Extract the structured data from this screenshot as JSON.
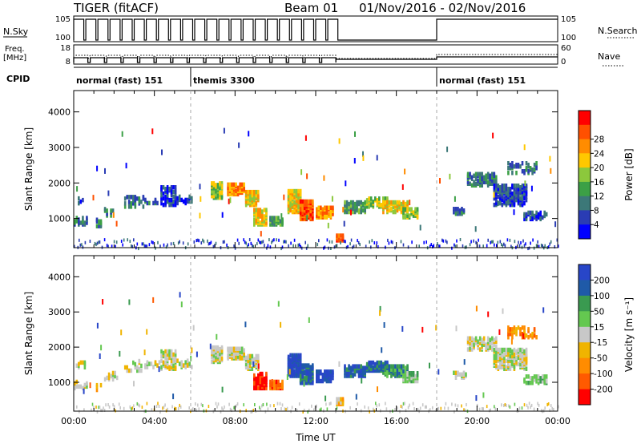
{
  "header": {
    "radar": "TIGER (fitACF)",
    "beam": "Beam 01",
    "daterange": "01/Nov/2016 - 02/Nov/2016"
  },
  "top_panels": {
    "nsky_label": "N.Sky",
    "nsky_ticks": [
      "10^5",
      "10^0"
    ],
    "nsearch_label": "N.Search",
    "nsearch_ticks": [
      "10^5",
      "10^0"
    ],
    "freq_label_1": "Freq.",
    "freq_label_2": "[MHz]",
    "freq_ticks": [
      "18",
      "8"
    ],
    "nave_label": "Nave",
    "nave_ticks": [
      "60",
      "0"
    ],
    "cpid_label": "CPID",
    "cpid_modes": [
      {
        "label": "normal (fast) 151",
        "start_hour": 0.0
      },
      {
        "label": "themis 3300",
        "start_hour": 5.8
      },
      {
        "label": "normal (fast) 151",
        "start_hour": 18.0
      }
    ]
  },
  "chart_data": [
    {
      "type": "heatmap",
      "name": "power",
      "ylabel": "Slant Range [km]",
      "ylim": [
        180,
        4600
      ],
      "yticks": [
        "1000",
        "2000",
        "3000",
        "4000"
      ],
      "xlim_hours": [
        0,
        24
      ],
      "colorbar_label": "Power [dB]",
      "colorbar_ticks": [
        "4",
        "8",
        "12",
        "16",
        "20",
        "24",
        "28"
      ],
      "colorbar_colors": [
        "#0000ff",
        "#2a3cb4",
        "#3c7878",
        "#3ca046",
        "#8cc83c",
        "#ffc800",
        "#ff8c00",
        "#ff5000",
        "#ff0000"
      ],
      "dashed_markers_hours": [
        5.8,
        18.0
      ]
    },
    {
      "type": "heatmap",
      "name": "velocity",
      "ylabel": "Slant Range [km]",
      "ylim": [
        180,
        4600
      ],
      "yticks": [
        "1000",
        "2000",
        "3000",
        "4000"
      ],
      "xlim_hours": [
        0,
        24
      ],
      "xticks": [
        "00:00",
        "04:00",
        "08:00",
        "12:00",
        "16:00",
        "20:00",
        "00:00"
      ],
      "xlabel": "Time UT",
      "colorbar_label": "Velocity [m s⁻¹]",
      "colorbar_ticks": [
        "200",
        "100",
        "50",
        "15",
        "-15",
        "-50",
        "-100",
        "-200"
      ],
      "colorbar_colors": [
        "#2846c8",
        "#1f5aa8",
        "#3a9a50",
        "#64c850",
        "#c8c8c8",
        "#f0b400",
        "#ff8c00",
        "#ff5a00",
        "#ff0000"
      ],
      "dashed_markers_hours": [
        5.8,
        18.0
      ]
    }
  ]
}
